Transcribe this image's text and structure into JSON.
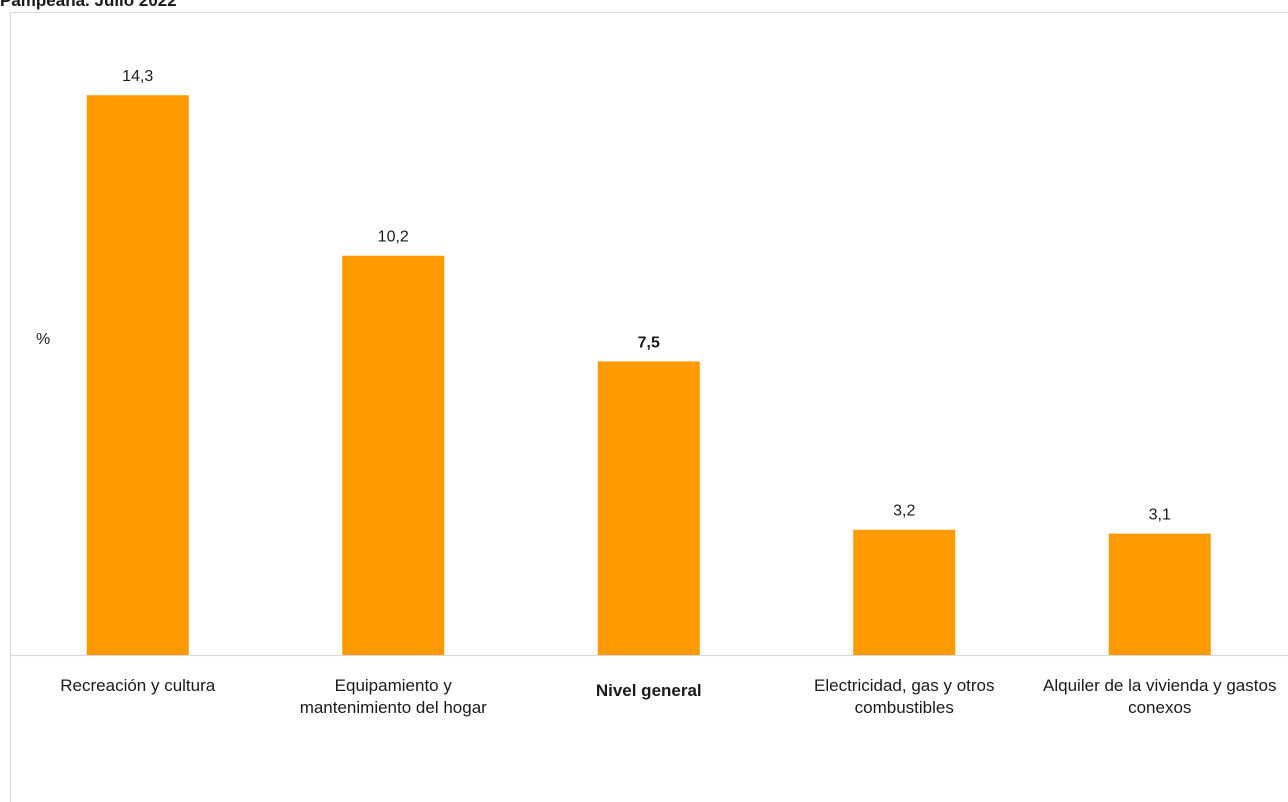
{
  "header": {
    "title_fragment": "Pampeana. Julio 2022"
  },
  "chart_data": {
    "type": "bar",
    "title": "",
    "xlabel": "",
    "ylabel": "%",
    "ylim": [
      0,
      15.2
    ],
    "grid": false,
    "bar_color": "#ff9900",
    "categories": [
      "Recreación y cultura",
      "Equipamiento y mantenimiento del hogar",
      "Nivel general",
      "Electricidad, gas y otros combustibles",
      "Alquiler de la vivienda y gastos conexos"
    ],
    "values": [
      14.3,
      10.2,
      7.5,
      3.2,
      3.1
    ],
    "value_labels": [
      "14,3",
      "10,2",
      "7,5",
      "3,2",
      "3,1"
    ],
    "highlight_index": 2
  }
}
